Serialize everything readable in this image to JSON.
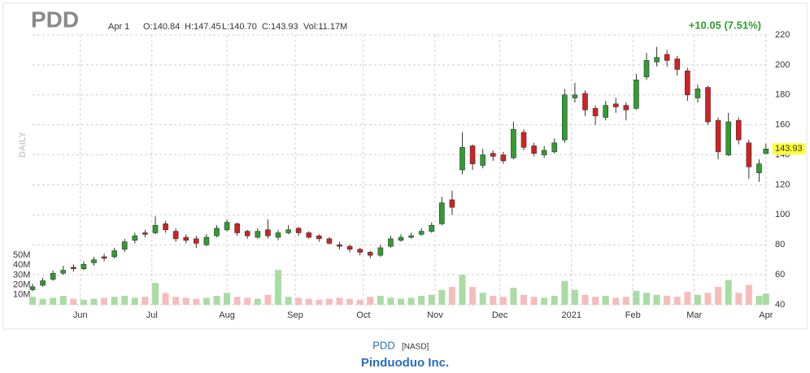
{
  "header": {
    "symbol": "PDD",
    "date": "Apr 1",
    "open": "O:140.84",
    "high": "H:147.45",
    "low": "L:140.70",
    "close": "C:143.93",
    "volume": "Vol:11.17M",
    "change": "+10.05 (7.51%)"
  },
  "footer": {
    "symbol": "PDD",
    "exchange": "[NASD]",
    "company": "Pinduoduo Inc."
  },
  "chart_data": {
    "type": "candlestick",
    "y_label": "DAILY",
    "grid": true,
    "up_color": "#2e9e2e",
    "down_color": "#d42020",
    "volume_up_color": "#a9dca3",
    "volume_down_color": "#f6bcbc",
    "tag_color": "#ffff33",
    "xlim": [
      0,
      216
    ],
    "xticks": [
      {
        "value": 14,
        "label": "Jun"
      },
      {
        "value": 35,
        "label": "Jul"
      },
      {
        "value": 57,
        "label": "Aug"
      },
      {
        "value": 77,
        "label": "Sep"
      },
      {
        "value": 97,
        "label": "Oct"
      },
      {
        "value": 118,
        "label": "Nov"
      },
      {
        "value": 137,
        "label": "Dec"
      },
      {
        "value": 158,
        "label": "2021"
      },
      {
        "value": 176,
        "label": "Feb"
      },
      {
        "value": 194,
        "label": "Mar"
      },
      {
        "value": 215,
        "label": "Apr"
      }
    ],
    "ylim": [
      40,
      220
    ],
    "yticks": [
      40,
      60,
      80,
      100,
      120,
      140,
      160,
      180,
      200,
      220
    ],
    "volume_lim": [
      0,
      272
    ],
    "volume_ticks": [
      {
        "value": 10,
        "label": "10M"
      },
      {
        "value": 20,
        "label": "20M"
      },
      {
        "value": 30,
        "label": "30M"
      },
      {
        "value": 40,
        "label": "40M"
      },
      {
        "value": 50,
        "label": "50M"
      }
    ],
    "x": [
      0,
      3,
      6,
      9,
      12,
      15,
      18,
      21,
      24,
      27,
      30,
      33,
      36,
      39,
      42,
      45,
      48,
      51,
      54,
      57,
      60,
      63,
      66,
      69,
      72,
      75,
      78,
      81,
      84,
      87,
      90,
      93,
      96,
      99,
      102,
      105,
      108,
      111,
      114,
      117,
      120,
      123,
      126,
      129,
      132,
      135,
      138,
      141,
      144,
      147,
      150,
      153,
      156,
      159,
      162,
      165,
      168,
      171,
      174,
      177,
      180,
      183,
      186,
      189,
      192,
      195,
      198,
      201,
      204,
      207,
      210,
      213,
      215
    ],
    "open": [
      50,
      53,
      57,
      61,
      65,
      64,
      68,
      72,
      72,
      77,
      83,
      88,
      88,
      94,
      89,
      85,
      84,
      80,
      86,
      90,
      94,
      89,
      85,
      90,
      85,
      88,
      91,
      88,
      86,
      84,
      80,
      79,
      77,
      75,
      73,
      79,
      83,
      85,
      87,
      89,
      94,
      110,
      130,
      146,
      133,
      141,
      140,
      138,
      155,
      146,
      140,
      142,
      150,
      178,
      181,
      171,
      165,
      174,
      173,
      171,
      192,
      202,
      207,
      204,
      196,
      178,
      185,
      163,
      140,
      163,
      148,
      128,
      140.84
    ],
    "high": [
      54,
      58,
      63,
      66,
      67,
      69,
      72,
      74,
      78,
      84,
      88,
      90,
      99,
      96,
      91,
      87,
      86,
      87,
      93,
      97,
      95,
      90,
      91,
      97,
      90,
      93,
      92,
      89,
      87,
      85,
      82,
      80,
      78,
      76,
      80,
      86,
      87,
      88,
      91,
      95,
      112,
      116,
      155,
      147,
      144,
      143,
      142,
      162,
      157,
      148,
      146,
      151,
      184,
      188,
      183,
      173,
      176,
      178,
      175,
      194,
      208,
      212,
      210,
      206,
      198,
      187,
      186,
      165,
      168,
      165,
      150,
      137,
      147.45
    ],
    "low": [
      49,
      52,
      56,
      60,
      62,
      63,
      66,
      69,
      71,
      75,
      81,
      85,
      87,
      88,
      82,
      81,
      78,
      79,
      85,
      89,
      86,
      84,
      84,
      84,
      83,
      87,
      86,
      84,
      82,
      80,
      77,
      75,
      73,
      71,
      72,
      78,
      82,
      84,
      86,
      88,
      93,
      100,
      127,
      130,
      131,
      136,
      134,
      137,
      143,
      139,
      138,
      141,
      148,
      175,
      166,
      160,
      163,
      168,
      163,
      170,
      190,
      199,
      199,
      193,
      176,
      175,
      160,
      137,
      139,
      147,
      124,
      122,
      140.7
    ],
    "close": [
      52,
      56,
      61,
      63,
      64,
      67,
      70,
      71,
      76,
      82,
      86,
      87,
      93,
      90,
      84,
      83,
      81,
      85,
      91,
      95,
      88,
      86,
      89,
      86,
      88,
      90,
      88,
      85,
      84,
      81,
      79,
      77,
      75,
      73,
      78,
      84,
      85,
      86,
      89,
      93,
      108,
      105,
      145,
      134,
      140,
      139,
      136,
      157,
      145,
      141,
      143,
      148,
      180,
      180,
      170,
      166,
      173,
      172,
      170,
      190,
      203,
      205,
      203,
      197,
      180,
      184,
      162,
      142,
      162,
      150,
      132,
      134,
      143.93
    ],
    "volume": [
      8,
      6,
      7,
      9,
      6,
      5,
      6,
      7,
      8,
      9,
      7,
      8,
      22,
      12,
      8,
      7,
      6,
      7,
      9,
      12,
      8,
      7,
      6,
      10,
      35,
      8,
      7,
      6,
      5,
      6,
      7,
      6,
      5,
      8,
      9,
      7,
      6,
      7,
      9,
      10,
      15,
      18,
      30,
      18,
      12,
      9,
      8,
      17,
      10,
      8,
      7,
      9,
      24,
      15,
      10,
      8,
      9,
      7,
      8,
      14,
      12,
      10,
      9,
      8,
      13,
      10,
      12,
      18,
      25,
      12,
      20,
      9,
      11.17
    ]
  }
}
